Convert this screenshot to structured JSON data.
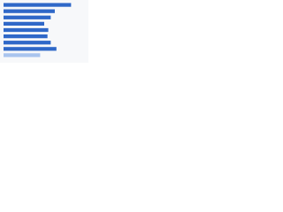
{
  "chart_data": {
    "type": "hbar",
    "categories": [
      null,
      null,
      null,
      null,
      null,
      null,
      null,
      null,
      null
    ],
    "values": [
      83,
      63,
      58,
      50,
      55,
      54,
      58,
      65,
      45
    ],
    "colors": [
      "#2f68c8",
      "#2f68c8",
      "#2f68c8",
      "#2f68c8",
      "#2f68c8",
      "#2f68c8",
      "#2f68c8",
      "#2f68c8",
      "#a9c4ee"
    ],
    "xlim": [
      0,
      100
    ]
  }
}
